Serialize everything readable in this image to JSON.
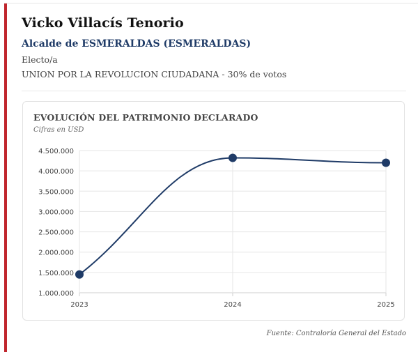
{
  "profile": {
    "name": "Vicko Villacís Tenorio",
    "office": "Alcalde de ESMERALDAS (ESMERALDAS)",
    "status": "Electo/a",
    "party": "UNION POR LA REVOLUCION CIUDADANA - 30% de votos"
  },
  "colors": {
    "accent": "#c0262d",
    "office_text": "#1f3b67",
    "series": "#1f3b67"
  },
  "chart": {
    "title": "EVOLUCIÓN DEL PATRIMONIO DECLARADO",
    "subtitle": "Cifras en USD"
  },
  "chart_data": {
    "type": "line",
    "title": "EVOLUCIÓN DEL PATRIMONIO DECLARADO",
    "subtitle": "Cifras en USD",
    "x": [
      "2023",
      "2024",
      "2025"
    ],
    "series": [
      {
        "values": [
          1450000,
          4320000,
          4200000
        ]
      }
    ],
    "y_ticks": [
      "1.000.000",
      "1.500.000",
      "2.000.000",
      "2.500.000",
      "3.000.000",
      "3.500.000",
      "4.000.000",
      "4.500.000"
    ],
    "y_tick_values": [
      1000000,
      1500000,
      2000000,
      2500000,
      3000000,
      3500000,
      4000000,
      4500000
    ],
    "ylim": [
      1000000,
      4500000
    ],
    "grid": true,
    "smooth": true,
    "xlabel": "",
    "ylabel": ""
  },
  "footer": {
    "source": "Fuente: Contraloría General del Estado"
  }
}
